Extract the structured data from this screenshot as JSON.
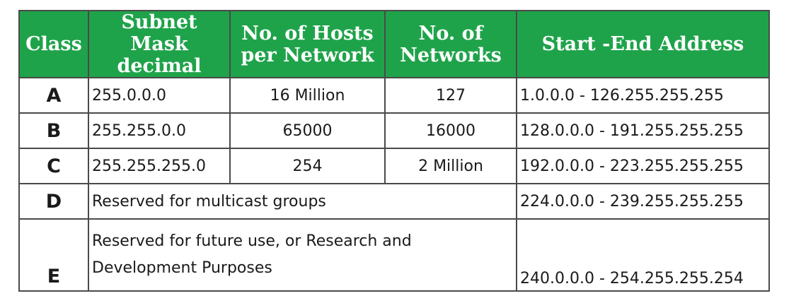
{
  "headers": {
    "class": "Class",
    "subnet_mask": "Subnet Mask decimal",
    "hosts": "No. of Hosts per Network",
    "networks": "No. of Networks",
    "range": "Start -End Address"
  },
  "rows": [
    {
      "class": "A",
      "mask": "255.0.0.0",
      "hosts": "16 Million",
      "networks": "127",
      "range": "1.0.0.0  - 126.255.255.255"
    },
    {
      "class": "B",
      "mask": "255.255.0.0",
      "hosts": "65000",
      "networks": "16000",
      "range": "128.0.0.0 - 191.255.255.255"
    },
    {
      "class": "C",
      "mask": "255.255.255.0",
      "hosts": "254",
      "networks": "2 Million",
      "range": "192.0.0.0 - 223.255.255.255"
    },
    {
      "class": "D",
      "note": "Reserved for multicast groups",
      "range": "224.0.0.0 - 239.255.255.255"
    },
    {
      "class": "E",
      "note": "Reserved for future use, or Research and Development Purposes",
      "range": "240.0.0.0 - 254.255.255.254"
    }
  ],
  "colors": {
    "header_bg": "#1fa34a",
    "header_text": "#ffffff",
    "border": "#4a4a4a"
  }
}
